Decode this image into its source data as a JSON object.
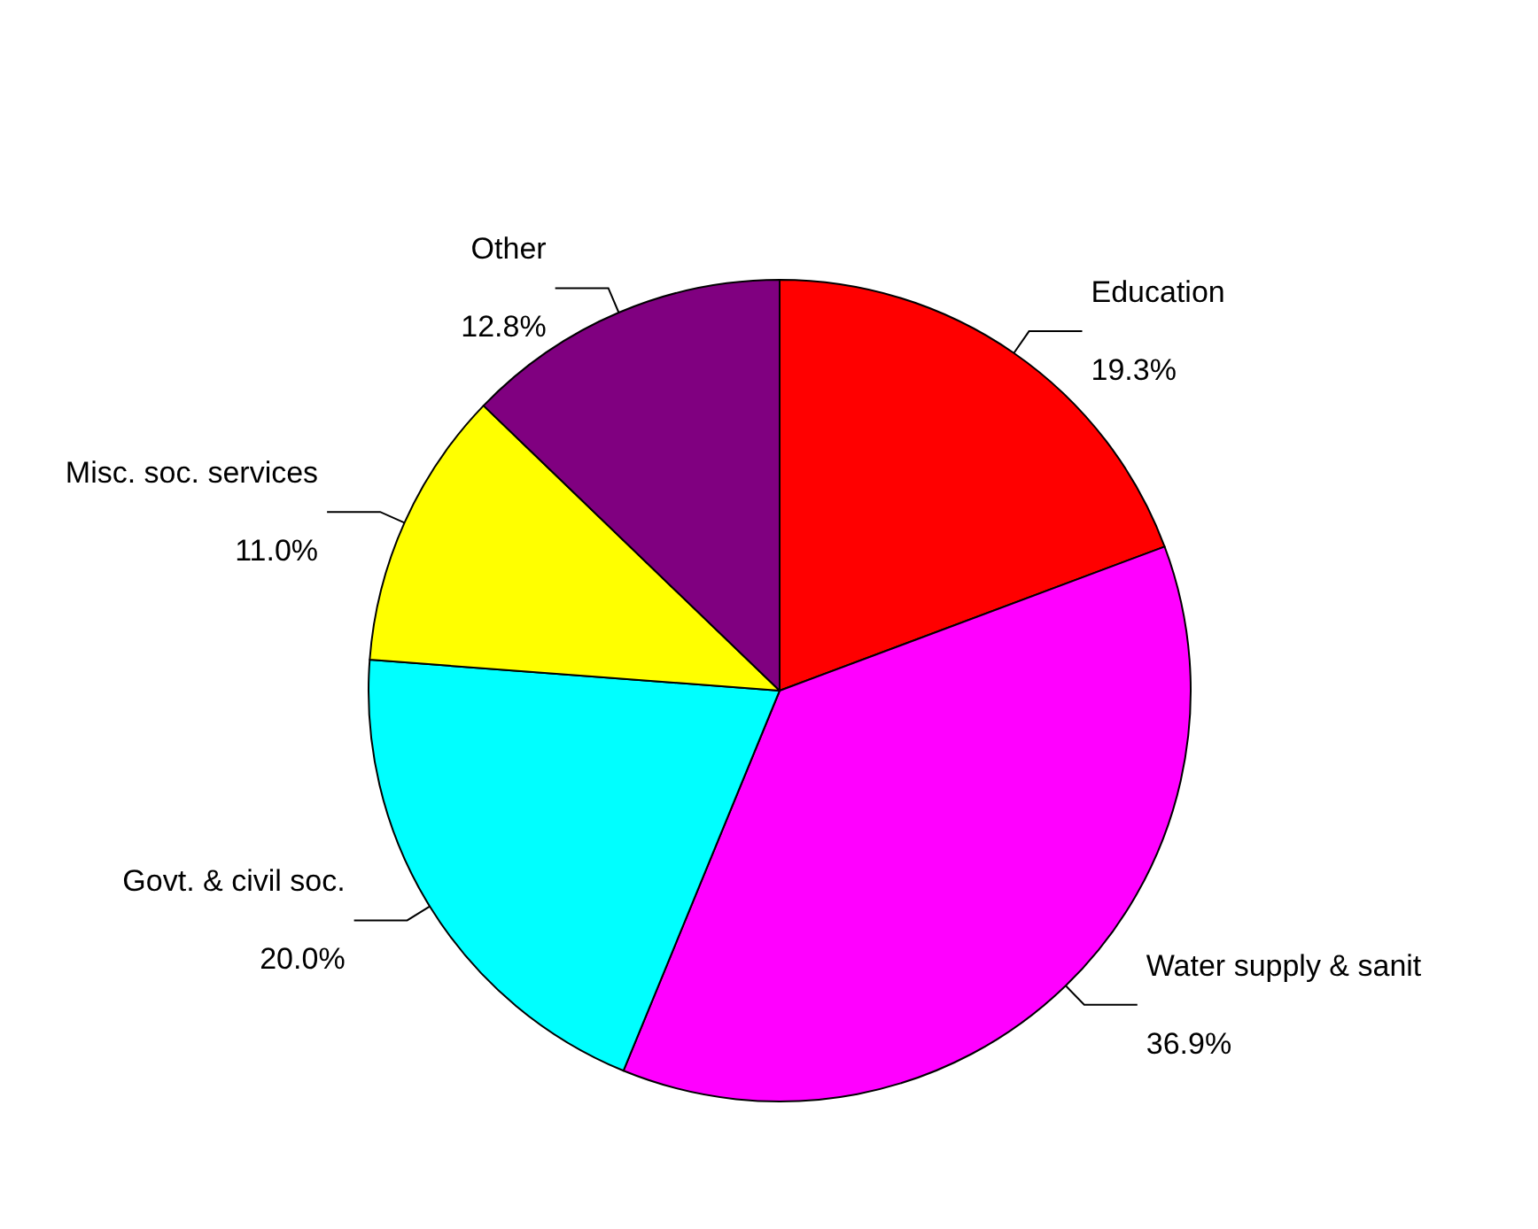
{
  "chart_data": {
    "type": "pie",
    "categories": [
      "Education",
      "Water supply & sanit",
      "Govt. & civil soc.",
      "Misc. soc. services",
      "Other"
    ],
    "values": [
      19.3,
      36.9,
      20.0,
      11.0,
      12.8
    ],
    "value_labels": [
      "19.3%",
      "36.9%",
      "20.0%",
      "11.0%",
      "12.8%"
    ],
    "colors": [
      "#ff0000",
      "#ff00ff",
      "#00ffff",
      "#ffff00",
      "#800080"
    ]
  }
}
